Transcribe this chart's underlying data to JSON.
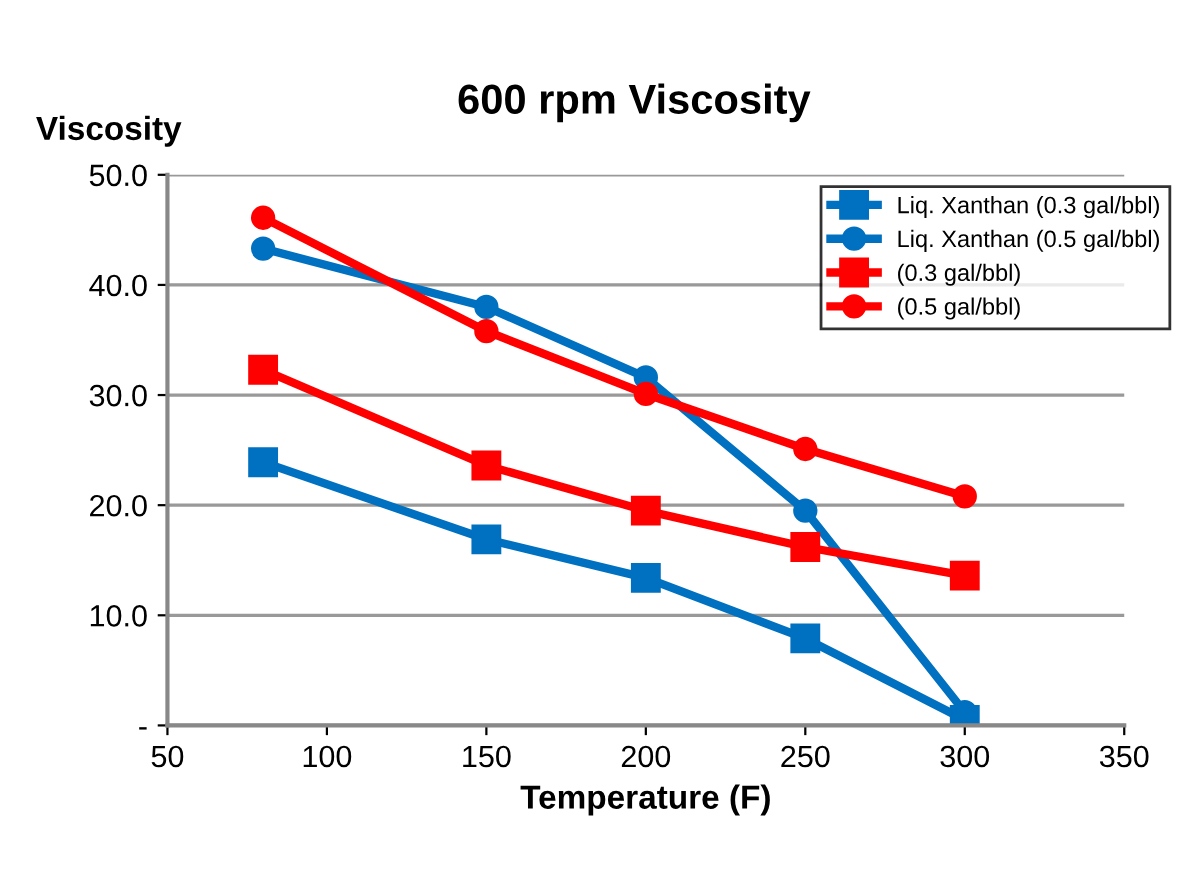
{
  "chart_data": {
    "type": "line",
    "title": "600 rpm Viscosity",
    "xlabel": "Temperature (F)",
    "ylabel": "Viscosity",
    "x": [
      80,
      150,
      200,
      250,
      300
    ],
    "series": [
      {
        "name": "Liq. Xanthan (0.3 gal/bbl)",
        "color": "#0070c0",
        "marker": "square",
        "values": [
          23.9,
          16.9,
          13.4,
          7.9,
          0.5
        ]
      },
      {
        "name": "Liq. Xanthan (0.5 gal/bbl)",
        "color": "#0070c0",
        "marker": "circle",
        "values": [
          43.3,
          38.0,
          31.6,
          19.5,
          1.2
        ]
      },
      {
        "name": "(0.3 gal/bbl)",
        "color": "#ff0000",
        "marker": "square",
        "values": [
          32.3,
          23.6,
          19.5,
          16.2,
          13.6
        ]
      },
      {
        "name": "(0.5 gal/bbl)",
        "color": "#ff0000",
        "marker": "circle",
        "values": [
          46.1,
          35.8,
          30.1,
          25.1,
          20.8
        ]
      }
    ],
    "xlim": [
      50,
      350
    ],
    "xticks": [
      50,
      100,
      150,
      200,
      250,
      300,
      350
    ],
    "ylim": [
      0,
      50
    ],
    "yticks": [
      {
        "value": 0,
        "label": "-"
      },
      {
        "value": 10,
        "label": "10.0"
      },
      {
        "value": 20,
        "label": "20.0"
      },
      {
        "value": 30,
        "label": "30.0"
      },
      {
        "value": 40,
        "label": "40.0"
      },
      {
        "value": 50,
        "label": "50.0"
      }
    ],
    "grid": "y",
    "legend": "top right",
    "line_style": "solid"
  }
}
